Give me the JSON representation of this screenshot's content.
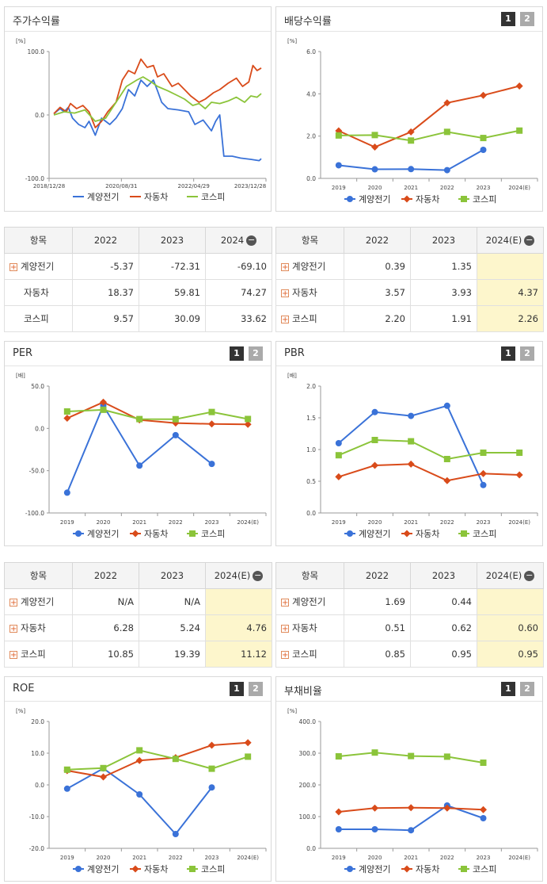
{
  "colors": {
    "company": "#3a72d8",
    "sector": "#d94b1a",
    "market": "#8bc43a"
  },
  "legend": [
    "계양전기",
    "자동차",
    "코스피"
  ],
  "buttons": {
    "one": "1",
    "two": "2"
  },
  "table_header": {
    "item": "항목",
    "c2022": "2022",
    "c2023": "2023",
    "c2024": "2024",
    "c2024e": "2024(E)"
  },
  "charts": [
    {
      "id": "stock",
      "title": "주가수익률",
      "unit": "[%]",
      "type": "line",
      "buttons": false,
      "ylim": [
        -100,
        100
      ],
      "yticks": [
        "100.0",
        "0.0",
        "-100.0"
      ],
      "xlabels": [
        "2018/12/28",
        "2020/08/31",
        "2022/04/29",
        "2023/12/28"
      ],
      "series": [
        {
          "name": "계양전기",
          "keypoints": [
            [
              0,
              2
            ],
            [
              0.03,
              10
            ],
            [
              0.05,
              5
            ],
            [
              0.07,
              12
            ],
            [
              0.09,
              -5
            ],
            [
              0.12,
              -15
            ],
            [
              0.15,
              -20
            ],
            [
              0.17,
              -10
            ],
            [
              0.2,
              -32
            ],
            [
              0.23,
              -5
            ],
            [
              0.27,
              -15
            ],
            [
              0.3,
              -5
            ],
            [
              0.33,
              10
            ],
            [
              0.36,
              40
            ],
            [
              0.39,
              30
            ],
            [
              0.42,
              55
            ],
            [
              0.45,
              45
            ],
            [
              0.48,
              55
            ],
            [
              0.5,
              38
            ],
            [
              0.52,
              20
            ],
            [
              0.55,
              10
            ],
            [
              0.6,
              8
            ],
            [
              0.65,
              5
            ],
            [
              0.68,
              -15
            ],
            [
              0.72,
              -8
            ],
            [
              0.76,
              -25
            ],
            [
              0.78,
              -10
            ],
            [
              0.8,
              0
            ],
            [
              0.82,
              -65
            ],
            [
              0.86,
              -65
            ],
            [
              0.9,
              -68
            ],
            [
              0.95,
              -70
            ],
            [
              0.99,
              -72
            ],
            [
              1.0,
              -69
            ]
          ]
        },
        {
          "name": "자동차",
          "keypoints": [
            [
              0,
              2
            ],
            [
              0.03,
              12
            ],
            [
              0.06,
              5
            ],
            [
              0.08,
              18
            ],
            [
              0.11,
              10
            ],
            [
              0.14,
              15
            ],
            [
              0.17,
              5
            ],
            [
              0.2,
              -20
            ],
            [
              0.23,
              -10
            ],
            [
              0.26,
              5
            ],
            [
              0.3,
              20
            ],
            [
              0.33,
              55
            ],
            [
              0.36,
              70
            ],
            [
              0.39,
              65
            ],
            [
              0.42,
              88
            ],
            [
              0.45,
              75
            ],
            [
              0.48,
              78
            ],
            [
              0.5,
              60
            ],
            [
              0.53,
              65
            ],
            [
              0.57,
              45
            ],
            [
              0.6,
              50
            ],
            [
              0.63,
              40
            ],
            [
              0.66,
              30
            ],
            [
              0.7,
              20
            ],
            [
              0.73,
              25
            ],
            [
              0.77,
              35
            ],
            [
              0.8,
              40
            ],
            [
              0.84,
              50
            ],
            [
              0.88,
              58
            ],
            [
              0.91,
              45
            ],
            [
              0.94,
              52
            ],
            [
              0.96,
              78
            ],
            [
              0.98,
              70
            ],
            [
              1.0,
              74
            ]
          ]
        },
        {
          "name": "코스피",
          "keypoints": [
            [
              0,
              0
            ],
            [
              0.05,
              5
            ],
            [
              0.1,
              3
            ],
            [
              0.15,
              8
            ],
            [
              0.2,
              -10
            ],
            [
              0.25,
              -5
            ],
            [
              0.3,
              20
            ],
            [
              0.35,
              45
            ],
            [
              0.4,
              55
            ],
            [
              0.43,
              60
            ],
            [
              0.47,
              52
            ],
            [
              0.5,
              45
            ],
            [
              0.55,
              38
            ],
            [
              0.6,
              30
            ],
            [
              0.63,
              25
            ],
            [
              0.67,
              15
            ],
            [
              0.7,
              18
            ],
            [
              0.73,
              10
            ],
            [
              0.76,
              20
            ],
            [
              0.8,
              18
            ],
            [
              0.84,
              22
            ],
            [
              0.88,
              28
            ],
            [
              0.92,
              20
            ],
            [
              0.95,
              30
            ],
            [
              0.98,
              28
            ],
            [
              1.0,
              33.6
            ]
          ]
        }
      ]
    },
    {
      "id": "dividend",
      "title": "배당수익률",
      "unit": "[%]",
      "type": "line",
      "buttons": true,
      "ylim": [
        0,
        6
      ],
      "yticks": [
        "6.0",
        "4.0",
        "2.0",
        "0.0"
      ],
      "categories": [
        "2019",
        "2020",
        "2021",
        "2022",
        "2023",
        "2024(E)"
      ],
      "series": [
        {
          "name": "계양전기",
          "values": [
            0.62,
            0.43,
            0.44,
            0.39,
            1.35,
            null
          ]
        },
        {
          "name": "자동차",
          "values": [
            2.25,
            1.48,
            2.2,
            3.57,
            3.93,
            4.37
          ]
        },
        {
          "name": "코스피",
          "values": [
            2.03,
            2.05,
            1.79,
            2.2,
            1.91,
            2.26
          ]
        }
      ]
    },
    {
      "id": "per",
      "title": "PER",
      "unit": "[배]",
      "type": "line",
      "buttons": true,
      "ylim": [
        -100,
        50
      ],
      "yticks": [
        "50.0",
        "0.0",
        "-50.0",
        "-100.0"
      ],
      "categories": [
        "2019",
        "2020",
        "2021",
        "2022",
        "2023",
        "2024(E)"
      ],
      "series": [
        {
          "name": "계양전기",
          "values": [
            -76,
            27,
            -44,
            -8,
            -42,
            null
          ]
        },
        {
          "name": "자동차",
          "values": [
            12,
            31,
            10,
            6.28,
            5.24,
            4.76
          ]
        },
        {
          "name": "코스피",
          "values": [
            20,
            22,
            11,
            10.85,
            19.39,
            11.12
          ]
        }
      ]
    },
    {
      "id": "pbr",
      "title": "PBR",
      "unit": "[배]",
      "type": "line",
      "buttons": true,
      "ylim": [
        0,
        2
      ],
      "yticks": [
        "2.0",
        "1.5",
        "1.0",
        "0.5",
        "0.0"
      ],
      "categories": [
        "2019",
        "2020",
        "2021",
        "2022",
        "2023",
        "2024(E)"
      ],
      "series": [
        {
          "name": "계양전기",
          "values": [
            1.1,
            1.59,
            1.53,
            1.69,
            0.44,
            null
          ]
        },
        {
          "name": "자동차",
          "values": [
            0.57,
            0.75,
            0.77,
            0.51,
            0.62,
            0.6
          ]
        },
        {
          "name": "코스피",
          "values": [
            0.91,
            1.15,
            1.13,
            0.85,
            0.95,
            0.95
          ]
        }
      ]
    },
    {
      "id": "roe",
      "title": "ROE",
      "unit": "[%]",
      "type": "line",
      "buttons": true,
      "ylim": [
        -20,
        20
      ],
      "yticks": [
        "20.0",
        "10.0",
        "0.0",
        "-10.0",
        "-20.0"
      ],
      "categories": [
        "2019",
        "2020",
        "2021",
        "2022",
        "2023",
        "2024(E)"
      ],
      "series": [
        {
          "name": "계양전기",
          "values": [
            -1.2,
            5.2,
            -3,
            -15.5,
            -0.8,
            null
          ]
        },
        {
          "name": "자동차",
          "values": [
            4.5,
            2.5,
            7.7,
            8.6,
            12.5,
            13.3
          ]
        },
        {
          "name": "코스피",
          "values": [
            4.8,
            5.3,
            10.9,
            8.2,
            5.1,
            8.9
          ]
        }
      ]
    },
    {
      "id": "debt",
      "title": "부채비율",
      "unit": "[%]",
      "type": "line",
      "buttons": true,
      "ylim": [
        0,
        400
      ],
      "yticks": [
        "400.0",
        "300.0",
        "200.0",
        "100.0",
        "0.0"
      ],
      "categories": [
        "2019",
        "2020",
        "2021",
        "2022",
        "2023",
        "2024(E)"
      ],
      "series": [
        {
          "name": "계양전기",
          "values": [
            60,
            60,
            57,
            135,
            95,
            null
          ]
        },
        {
          "name": "자동차",
          "values": [
            115,
            127,
            128,
            127,
            122,
            null
          ]
        },
        {
          "name": "코스피",
          "values": [
            290,
            302,
            291,
            289,
            270,
            null
          ]
        }
      ]
    }
  ],
  "tables": [
    {
      "id": "stock",
      "estimate": false,
      "rows": [
        {
          "name": "계양전기",
          "plus": true,
          "values": [
            "-5.37",
            "-72.31",
            "-69.10"
          ]
        },
        {
          "name": "자동차",
          "plus": false,
          "values": [
            "18.37",
            "59.81",
            "74.27"
          ]
        },
        {
          "name": "코스피",
          "plus": false,
          "values": [
            "9.57",
            "30.09",
            "33.62"
          ]
        }
      ]
    },
    {
      "id": "dividend",
      "estimate": true,
      "rows": [
        {
          "name": "계양전기",
          "plus": true,
          "values": [
            "0.39",
            "1.35",
            ""
          ]
        },
        {
          "name": "자동차",
          "plus": true,
          "values": [
            "3.57",
            "3.93",
            "4.37"
          ]
        },
        {
          "name": "코스피",
          "plus": true,
          "values": [
            "2.20",
            "1.91",
            "2.26"
          ]
        }
      ]
    },
    {
      "id": "per",
      "estimate": true,
      "rows": [
        {
          "name": "계양전기",
          "plus": true,
          "values": [
            "N/A",
            "N/A",
            ""
          ]
        },
        {
          "name": "자동차",
          "plus": true,
          "values": [
            "6.28",
            "5.24",
            "4.76"
          ]
        },
        {
          "name": "코스피",
          "plus": true,
          "values": [
            "10.85",
            "19.39",
            "11.12"
          ]
        }
      ]
    },
    {
      "id": "pbr",
      "estimate": true,
      "rows": [
        {
          "name": "계양전기",
          "plus": true,
          "values": [
            "1.69",
            "0.44",
            ""
          ]
        },
        {
          "name": "자동차",
          "plus": true,
          "values": [
            "0.51",
            "0.62",
            "0.60"
          ]
        },
        {
          "name": "코스피",
          "plus": true,
          "values": [
            "0.85",
            "0.95",
            "0.95"
          ]
        }
      ]
    }
  ],
  "chart_data": [
    {
      "type": "line",
      "title": "주가수익률",
      "ylabel": "[%]",
      "ylim": [
        -100,
        100
      ],
      "x": [
        "2018/12/28",
        "2020/08/31",
        "2022/04/29",
        "2023/12/28"
      ],
      "series": [
        {
          "name": "계양전기",
          "values": [
            2,
            -10,
            8,
            -69.1
          ]
        },
        {
          "name": "자동차",
          "values": [
            2,
            30,
            45,
            74.27
          ]
        },
        {
          "name": "코스피",
          "values": [
            0,
            30,
            25,
            33.62
          ]
        }
      ]
    },
    {
      "type": "line",
      "title": "배당수익률",
      "ylabel": "[%]",
      "ylim": [
        0,
        6
      ],
      "categories": [
        "2019",
        "2020",
        "2021",
        "2022",
        "2023",
        "2024(E)"
      ],
      "series": [
        {
          "name": "계양전기",
          "values": [
            0.62,
            0.43,
            0.44,
            0.39,
            1.35,
            null
          ]
        },
        {
          "name": "자동차",
          "values": [
            2.25,
            1.48,
            2.2,
            3.57,
            3.93,
            4.37
          ]
        },
        {
          "name": "코스피",
          "values": [
            2.03,
            2.05,
            1.79,
            2.2,
            1.91,
            2.26
          ]
        }
      ]
    },
    {
      "type": "line",
      "title": "PER",
      "ylabel": "[배]",
      "ylim": [
        -100,
        50
      ],
      "categories": [
        "2019",
        "2020",
        "2021",
        "2022",
        "2023",
        "2024(E)"
      ],
      "series": [
        {
          "name": "계양전기",
          "values": [
            -76,
            27,
            -44,
            -8,
            -42,
            null
          ]
        },
        {
          "name": "자동차",
          "values": [
            12,
            31,
            10,
            6.28,
            5.24,
            4.76
          ]
        },
        {
          "name": "코스피",
          "values": [
            20,
            22,
            11,
            10.85,
            19.39,
            11.12
          ]
        }
      ]
    },
    {
      "type": "line",
      "title": "PBR",
      "ylabel": "[배]",
      "ylim": [
        0,
        2
      ],
      "categories": [
        "2019",
        "2020",
        "2021",
        "2022",
        "2023",
        "2024(E)"
      ],
      "series": [
        {
          "name": "계양전기",
          "values": [
            1.1,
            1.59,
            1.53,
            1.69,
            0.44,
            null
          ]
        },
        {
          "name": "자동차",
          "values": [
            0.57,
            0.75,
            0.77,
            0.51,
            0.62,
            0.6
          ]
        },
        {
          "name": "코스피",
          "values": [
            0.91,
            1.15,
            1.13,
            0.85,
            0.95,
            0.95
          ]
        }
      ]
    },
    {
      "type": "line",
      "title": "ROE",
      "ylabel": "[%]",
      "ylim": [
        -20,
        20
      ],
      "categories": [
        "2019",
        "2020",
        "2021",
        "2022",
        "2023",
        "2024(E)"
      ],
      "series": [
        {
          "name": "계양전기",
          "values": [
            -1.2,
            5.2,
            -3,
            -15.5,
            -0.8,
            null
          ]
        },
        {
          "name": "자동차",
          "values": [
            4.5,
            2.5,
            7.7,
            8.6,
            12.5,
            13.3
          ]
        },
        {
          "name": "코스피",
          "values": [
            4.8,
            5.3,
            10.9,
            8.2,
            5.1,
            8.9
          ]
        }
      ]
    },
    {
      "type": "line",
      "title": "부채비율",
      "ylabel": "[%]",
      "ylim": [
        0,
        400
      ],
      "categories": [
        "2019",
        "2020",
        "2021",
        "2022",
        "2023",
        "2024(E)"
      ],
      "series": [
        {
          "name": "계양전기",
          "values": [
            60,
            60,
            57,
            135,
            95,
            null
          ]
        },
        {
          "name": "자동차",
          "values": [
            115,
            127,
            128,
            127,
            122,
            null
          ]
        },
        {
          "name": "코스피",
          "values": [
            290,
            302,
            291,
            289,
            270,
            null
          ]
        }
      ]
    }
  ]
}
